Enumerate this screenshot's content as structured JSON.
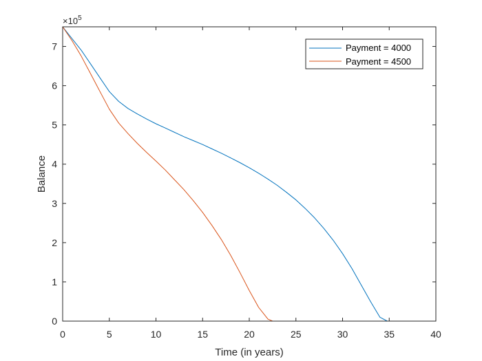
{
  "chart_data": {
    "type": "line",
    "xlabel": "Time (in years)",
    "ylabel": "Balance",
    "xlim": [
      0,
      40
    ],
    "ylim": [
      0,
      7.5
    ],
    "y_multiplier_base": "×10",
    "y_multiplier_exp": "5",
    "xticks": [
      0,
      5,
      10,
      15,
      20,
      25,
      30,
      35,
      40
    ],
    "xtick_labels": [
      "0",
      "5",
      "10",
      "15",
      "20",
      "25",
      "30",
      "35",
      "40"
    ],
    "yticks": [
      0,
      1,
      2,
      3,
      4,
      5,
      6,
      7
    ],
    "ytick_labels": [
      "0",
      "1",
      "2",
      "3",
      "4",
      "5",
      "6",
      "7"
    ],
    "grid": false,
    "legend_position": "top-right",
    "series": [
      {
        "name": "Payment = 4000",
        "color": "#0072BD",
        "x": [
          0,
          1,
          2,
          3,
          4,
          5,
          6,
          7,
          8,
          9,
          10,
          11,
          12,
          13,
          14,
          15,
          16,
          17,
          18,
          19,
          20,
          21,
          22,
          23,
          24,
          25,
          26,
          27,
          28,
          29,
          30,
          31,
          32,
          33,
          34,
          34.8
        ],
        "y": [
          7.5,
          7.2,
          6.9,
          6.55,
          6.2,
          5.85,
          5.6,
          5.42,
          5.28,
          5.15,
          5.03,
          4.92,
          4.81,
          4.7,
          4.6,
          4.5,
          4.39,
          4.28,
          4.16,
          4.04,
          3.91,
          3.77,
          3.62,
          3.46,
          3.28,
          3.09,
          2.87,
          2.63,
          2.36,
          2.06,
          1.72,
          1.34,
          0.92,
          0.5,
          0.1,
          0
        ]
      },
      {
        "name": "Payment = 4500",
        "color": "#D95319",
        "x": [
          0,
          1,
          2,
          3,
          4,
          5,
          6,
          7,
          8,
          9,
          10,
          11,
          12,
          13,
          14,
          15,
          16,
          17,
          18,
          19,
          20,
          21,
          22,
          22.5
        ],
        "y": [
          7.5,
          7.15,
          6.75,
          6.3,
          5.85,
          5.4,
          5.05,
          4.78,
          4.53,
          4.3,
          4.08,
          3.85,
          3.6,
          3.35,
          3.07,
          2.77,
          2.44,
          2.08,
          1.68,
          1.24,
          0.78,
          0.35,
          0.05,
          0
        ]
      }
    ]
  }
}
